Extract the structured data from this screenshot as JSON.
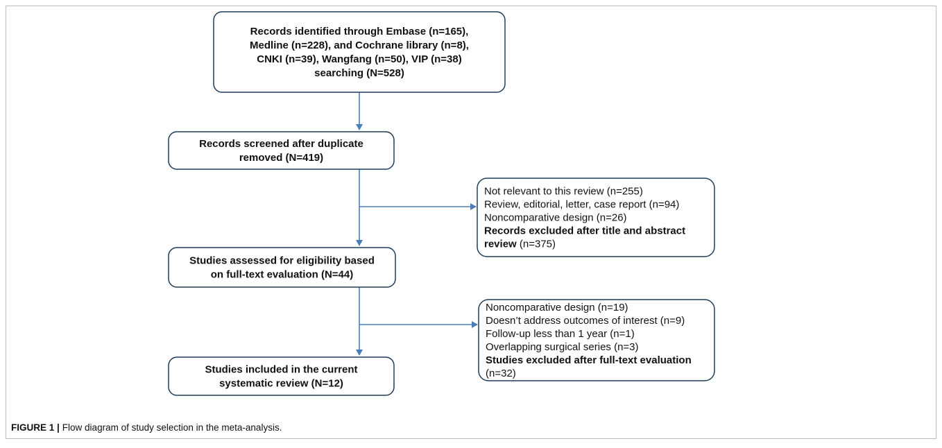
{
  "boxes": [
    {
      "lines": [
        "Records identified through Embase (n=165),",
        "Medline (n=228), and Cochrane library (n=8),",
        "CNKI (n=39), Wangfang (n=50), VIP (n=38)",
        "searching (N=528)"
      ]
    },
    {
      "lines": [
        "Records screened after duplicate",
        "removed (N=419)"
      ]
    },
    {
      "lines": [
        "Studies assessed for eligibility based",
        "on full-text evaluation (N=44)"
      ]
    },
    {
      "lines": [
        "Studies included in the current",
        "systematic review (N=12)"
      ]
    }
  ],
  "exclusions": [
    {
      "lines": [
        [
          {
            "text": "Not relevant to this review (n=255)",
            "bold": false
          }
        ],
        [
          {
            "text": "Review, editorial, letter, case report (n=94)",
            "bold": false
          }
        ],
        [
          {
            "text": "Noncomparative design (n=26)",
            "bold": false
          }
        ],
        [
          {
            "text": "Records excluded after title and abstract",
            "bold": true
          }
        ],
        [
          {
            "text": "review",
            "bold": true
          },
          {
            "text": " (n=375)",
            "bold": false
          }
        ]
      ]
    },
    {
      "lines": [
        [
          {
            "text": "Noncomparative design (n=19)",
            "bold": false
          }
        ],
        [
          {
            "text": "Doesn’t address outcomes of interest (n=9)",
            "bold": false
          }
        ],
        [
          {
            "text": "Follow-up less than 1 year (n=1)",
            "bold": false
          }
        ],
        [
          {
            "text": "Overlapping surgical series (n=3)",
            "bold": false
          }
        ],
        [
          {
            "text": "Studies excluded after full-text evaluation",
            "bold": true
          }
        ],
        [
          {
            "text": "(n=32)",
            "bold": false
          }
        ]
      ]
    }
  ],
  "caption": {
    "label": "FIGURE 1 |",
    "text": "Flow diagram of study selection in the meta-analysis."
  }
}
